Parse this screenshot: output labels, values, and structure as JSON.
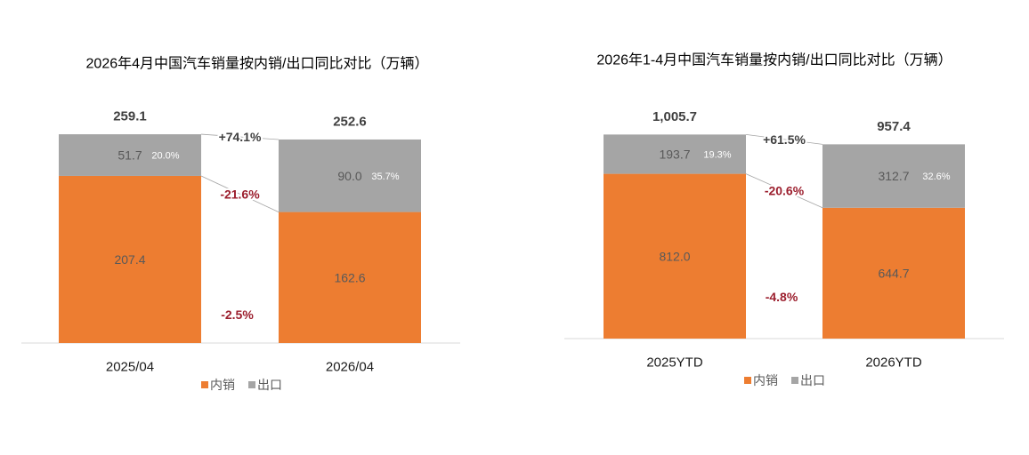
{
  "chart_data": [
    {
      "type": "bar",
      "stacked": true,
      "title": "2026年4月中国汽车销量按内销/出口同比对比（万辆）",
      "categories": [
        "2025/04",
        "2026/04"
      ],
      "series": [
        {
          "name": "内销",
          "values": [
            207.4,
            162.6
          ],
          "color": "#ED7D31",
          "yoy": "-21.6%"
        },
        {
          "name": "出口",
          "values": [
            51.7,
            90.0
          ],
          "color": "#A5A5A5",
          "yoy": "+74.1%",
          "shares": [
            "20.0%",
            "35.7%"
          ]
        }
      ],
      "totals": [
        259.1,
        252.6
      ],
      "total_yoy": "-2.5%",
      "ylim": [
        0,
        300
      ],
      "y_axis_visible": false,
      "grid": false,
      "legend": "bottom"
    },
    {
      "type": "bar",
      "stacked": true,
      "title": "2026年1-4月中国汽车销量按内销/出口同比对比（万辆）",
      "categories": [
        "2025YTD",
        "2026YTD"
      ],
      "series": [
        {
          "name": "内销",
          "values": [
            812.0,
            644.7
          ],
          "color": "#ED7D31",
          "yoy": "-20.6%"
        },
        {
          "name": "出口",
          "values": [
            193.7,
            312.7
          ],
          "color": "#A5A5A5",
          "yoy": "+61.5%",
          "shares": [
            "19.3%",
            "32.6%"
          ]
        }
      ],
      "totals": [
        1005.7,
        957.4
      ],
      "total_yoy": "-4.8%",
      "ylim": [
        0,
        1200
      ],
      "y_axis_visible": false,
      "grid": false,
      "legend": "bottom"
    }
  ],
  "colors": {
    "positive_change": "#404040",
    "negative_change": "#9C1F2E",
    "axis_line": "#D9D9D9",
    "connector_line": "#A6A6A6"
  }
}
